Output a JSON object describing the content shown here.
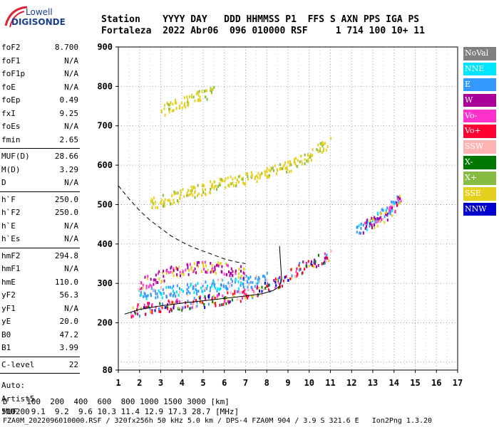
{
  "logo": {
    "top": "Lowell",
    "bottom": "DIGISONDE"
  },
  "header": {
    "line1": "Station    YYYY DAY   DDD HHMMSS P1  FFS S AXN PPS IGA PS",
    "line2": "Fortaleza  2022 Abr06  096 010000 RSF     1 714 100 10+ 11"
  },
  "params": [
    {
      "group": [
        {
          "label": "foF2",
          "value": "8.700"
        },
        {
          "label": "foF1",
          "value": "N/A"
        },
        {
          "label": "foF1p",
          "value": "N/A"
        },
        {
          "label": "foE",
          "value": "N/A"
        },
        {
          "label": "foEp",
          "value": "0.49"
        },
        {
          "label": "fxI",
          "value": "9.25"
        },
        {
          "label": "foEs",
          "value": "N/A"
        },
        {
          "label": "fmin",
          "value": "2.65"
        }
      ]
    },
    {
      "group": [
        {
          "label": "MUF(D)",
          "value": "28.66"
        },
        {
          "label": "M(D)",
          "value": "3.29"
        },
        {
          "label": "D",
          "value": "N/A"
        }
      ]
    },
    {
      "group": [
        {
          "label": "h`F",
          "value": "250.0"
        },
        {
          "label": "h`F2",
          "value": "250.0"
        },
        {
          "label": "h`E",
          "value": "N/A"
        },
        {
          "label": "h`Es",
          "value": "N/A"
        }
      ]
    },
    {
      "group": [
        {
          "label": "hmF2",
          "value": "294.8"
        },
        {
          "label": "hmF1",
          "value": "N/A"
        },
        {
          "label": "hmE",
          "value": "110.0"
        },
        {
          "label": "yF2",
          "value": "56.3"
        },
        {
          "label": "yF1",
          "value": "N/A"
        },
        {
          "label": "yE",
          "value": "20.0"
        },
        {
          "label": "B0",
          "value": "47.2"
        },
        {
          "label": "B1",
          "value": "3.99"
        }
      ]
    },
    {
      "group": [
        {
          "label": "C-level",
          "value": "22"
        }
      ]
    }
  ],
  "auto": [
    "Auto:",
    "Artist5",
    "500200"
  ],
  "legend": [
    {
      "label": "NoVal",
      "color": "#808080"
    },
    {
      "label": "NNE",
      "color": "#00e5ff"
    },
    {
      "label": "E",
      "color": "#3399ff"
    },
    {
      "label": "W",
      "color": "#aa0099"
    },
    {
      "label": "Vo-",
      "color": "#ff33cc"
    },
    {
      "label": "Vo+",
      "color": "#ff0033"
    },
    {
      "label": "SSW",
      "color": "#ffb3b3"
    },
    {
      "label": "X-",
      "color": "#007700"
    },
    {
      "label": "X+",
      "color": "#88bb44"
    },
    {
      "label": "SSE",
      "color": "#e5d020"
    },
    {
      "label": "NNW",
      "color": "#0000cc"
    }
  ],
  "footer": {
    "line1": "D    100  200  400  600  800 1000 1500 3000 [km]",
    "line2": "MUF   9.1  9.2  9.6 10.3 11.4 12.9 17.3 28.7 [MHz]",
    "line3": "FZA0M_2022096010000.RSF / 320fx256h 50 kHz 5.0 km / DPS-4 FZA0M 904 / 3.9 S 321.6 E   Ion2Png 1.3.20"
  },
  "chart_data": {
    "type": "scatter",
    "xlim": [
      1,
      17
    ],
    "ylim": [
      80,
      900
    ],
    "x_ticks": [
      1,
      2,
      3,
      4,
      5,
      6,
      7,
      8,
      9,
      10,
      11,
      12,
      13,
      14,
      15,
      16,
      17
    ],
    "y_ticks": [
      80,
      200,
      300,
      400,
      500,
      600,
      700,
      800,
      900
    ],
    "grid": true,
    "traces": [
      {
        "name": "E",
        "x": [
          1.9,
          2.5,
          3,
          3.5,
          4,
          4.5,
          5,
          5.5,
          6,
          6.5,
          7,
          7.5,
          8
        ],
        "y": [
          275,
          278,
          281,
          284,
          287,
          290,
          294,
          297,
          300,
          304,
          308,
          312,
          318
        ]
      },
      {
        "name": "Vo+",
        "x": [
          1.5,
          2,
          2.5,
          3,
          3.5,
          4,
          4.5,
          5,
          5.5,
          6,
          6.5,
          7,
          7.5,
          8,
          8.5,
          9,
          9.5,
          10,
          10.5,
          11
        ],
        "y": [
          230,
          236,
          240,
          244,
          247,
          250,
          254,
          257,
          261,
          265,
          270,
          276,
          283,
          292,
          305,
          322,
          340,
          352,
          362,
          372
        ]
      },
      {
        "name": "W",
        "x": [
          2,
          2.5,
          3,
          3.5,
          4,
          4.5,
          5,
          5.5,
          6,
          6.5,
          7
        ],
        "y": [
          300,
          310,
          322,
          332,
          338,
          342,
          345,
          344,
          340,
          335,
          330
        ]
      },
      {
        "name": "SSE",
        "x": [
          2.5,
          3,
          3.5,
          4,
          4.5,
          5,
          5.5,
          6,
          6.5,
          7,
          7.5,
          8,
          8.5,
          9,
          9.5,
          10,
          10.5,
          11
        ],
        "y": [
          505,
          512,
          520,
          528,
          535,
          542,
          550,
          556,
          562,
          568,
          575,
          582,
          590,
          600,
          612,
          628,
          648,
          660
        ]
      },
      {
        "name": "SSE",
        "x": [
          3,
          3.5,
          4,
          4.5,
          5,
          5.5
        ],
        "y": [
          740,
          752,
          762,
          772,
          780,
          790
        ]
      },
      {
        "name": "E",
        "x": [
          12.2,
          12.6,
          13,
          13.4,
          13.8,
          14.2
        ],
        "y": [
          438,
          448,
          462,
          478,
          495,
          512
        ]
      },
      {
        "name": "W",
        "x": [
          12.5,
          13,
          13.5,
          14,
          14.3
        ],
        "y": [
          445,
          458,
          472,
          492,
          525
        ]
      }
    ],
    "curves": [
      {
        "name": "profile",
        "x": [
          1.3,
          2,
          3,
          4,
          5,
          6,
          7,
          7.8,
          8.3,
          8.6,
          8.7,
          8.6
        ],
        "y": [
          222,
          234,
          243,
          250,
          256,
          262,
          268,
          274,
          282,
          292,
          310,
          395
        ]
      },
      {
        "name": "dashed",
        "x": [
          1,
          1.5,
          2,
          2.5,
          3,
          3.5,
          4,
          4.5,
          5,
          5.5,
          6,
          6.5,
          7
        ],
        "y": [
          548,
          515,
          485,
          460,
          440,
          420,
          405,
          392,
          382,
          372,
          362,
          355,
          350
        ]
      }
    ]
  }
}
